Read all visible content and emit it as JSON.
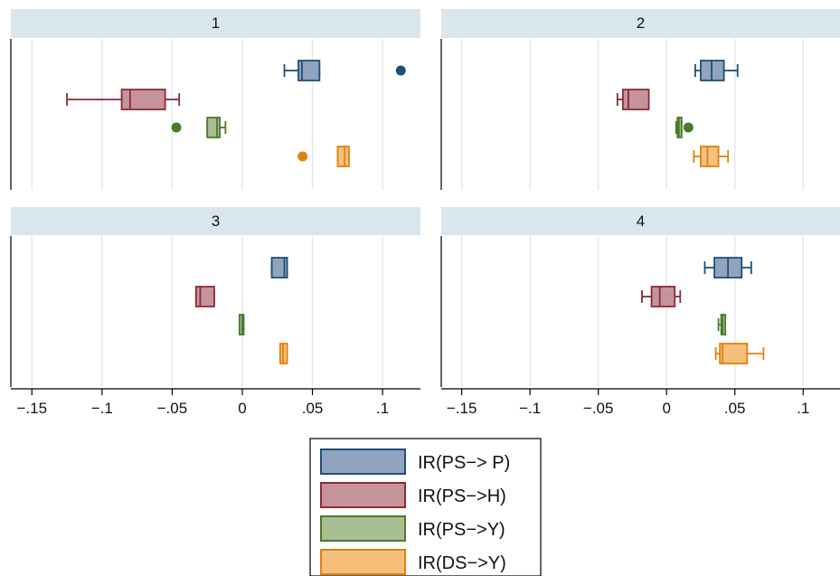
{
  "chart_data": {
    "type": "boxplot",
    "orientation": "horizontal",
    "layout": "2x2 facets",
    "x_ticks": [
      -0.15,
      -0.1,
      -0.05,
      0,
      0.05,
      0.1
    ],
    "x_tick_labels": [
      "−.15",
      "−.1",
      "−.05",
      "0",
      ".05",
      ".1"
    ],
    "xlim": [
      -0.165,
      0.127
    ],
    "grid": "vertical",
    "legend_position": "bottom-center",
    "colors": {
      "IR(PS−> P)": {
        "fill": "#90a4be",
        "line": "#1f4e79"
      },
      "IR(PS−>H)": {
        "fill": "#c7939b",
        "line": "#8b2b37"
      },
      "IR(PS−>Y)": {
        "fill": "#a9bd92",
        "line": "#4a7a2c"
      },
      "IR(DS−>Y)": {
        "fill": "#f6bf7b",
        "line": "#e0820f"
      }
    },
    "legend": [
      "IR(PS−> P)",
      "IR(PS−>H)",
      "IR(PS−>Y)",
      "IR(DS−>Y)"
    ],
    "panels": [
      {
        "label": "1",
        "series": [
          {
            "name": "IR(PS−> P)",
            "min": 0.03,
            "q1": 0.04,
            "median": 0.0425,
            "q3": 0.055,
            "max": 0.055,
            "outliers": [
              0.113
            ]
          },
          {
            "name": "IR(PS−>H)",
            "min": -0.125,
            "q1": -0.086,
            "median": -0.08,
            "q3": -0.055,
            "max": -0.045,
            "outliers": []
          },
          {
            "name": "IR(PS−>Y)",
            "min": -0.025,
            "q1": -0.025,
            "median": -0.018,
            "q3": -0.016,
            "max": -0.012,
            "outliers": [
              -0.047
            ]
          },
          {
            "name": "IR(DS−>Y)",
            "min": 0.068,
            "q1": 0.068,
            "median": 0.073,
            "q3": 0.076,
            "max": 0.076,
            "outliers": [
              0.043
            ]
          }
        ]
      },
      {
        "label": "2",
        "series": [
          {
            "name": "IR(PS−> P)",
            "min": 0.021,
            "q1": 0.025,
            "median": 0.033,
            "q3": 0.042,
            "max": 0.052,
            "outliers": []
          },
          {
            "name": "IR(PS−>H)",
            "min": -0.036,
            "q1": -0.032,
            "median": -0.028,
            "q3": -0.013,
            "max": -0.013,
            "outliers": []
          },
          {
            "name": "IR(PS−>Y)",
            "min": 0.007,
            "q1": 0.008,
            "median": 0.009,
            "q3": 0.011,
            "max": 0.011,
            "outliers": [
              0.016
            ]
          },
          {
            "name": "IR(DS−>Y)",
            "min": 0.02,
            "q1": 0.025,
            "median": 0.03,
            "q3": 0.038,
            "max": 0.045,
            "outliers": []
          }
        ]
      },
      {
        "label": "3",
        "series": [
          {
            "name": "IR(PS−> P)",
            "min": 0.021,
            "q1": 0.021,
            "median": 0.03,
            "q3": 0.032,
            "max": 0.032,
            "outliers": []
          },
          {
            "name": "IR(PS−>H)",
            "min": -0.033,
            "q1": -0.033,
            "median": -0.03,
            "q3": -0.02,
            "max": -0.02,
            "outliers": []
          },
          {
            "name": "IR(PS−>Y)",
            "min": -0.002,
            "q1": -0.002,
            "median": 0,
            "q3": 0.001,
            "max": 0.001,
            "outliers": []
          },
          {
            "name": "IR(DS−>Y)",
            "min": 0.027,
            "q1": 0.027,
            "median": 0.029,
            "q3": 0.032,
            "max": 0.032,
            "outliers": []
          }
        ]
      },
      {
        "label": "4",
        "series": [
          {
            "name": "IR(PS−> P)",
            "min": 0.028,
            "q1": 0.035,
            "median": 0.045,
            "q3": 0.055,
            "max": 0.062,
            "outliers": []
          },
          {
            "name": "IR(PS−>H)",
            "min": -0.018,
            "q1": -0.011,
            "median": -0.005,
            "q3": 0.006,
            "max": 0.01,
            "outliers": []
          },
          {
            "name": "IR(PS−>Y)",
            "min": 0.038,
            "q1": 0.04,
            "median": 0.041,
            "q3": 0.043,
            "max": 0.043,
            "outliers": []
          },
          {
            "name": "IR(DS−>Y)",
            "min": 0.036,
            "q1": 0.039,
            "median": 0.041,
            "q3": 0.059,
            "max": 0.071,
            "outliers": []
          }
        ]
      }
    ]
  }
}
